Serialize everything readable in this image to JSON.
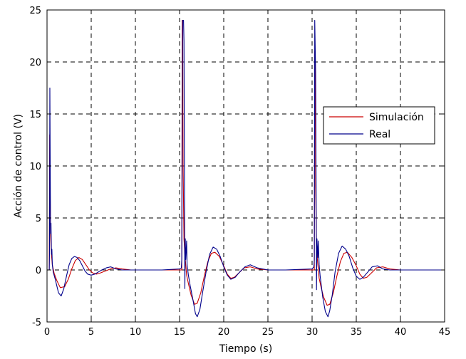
{
  "chart_data": {
    "type": "line",
    "xlabel": "Tiempo (s)",
    "ylabel": "Acción de control (V)",
    "xlim": [
      0,
      45
    ],
    "ylim": [
      -5,
      25
    ],
    "xticks": [
      "0",
      "5",
      "10",
      "15",
      "20",
      "25",
      "30",
      "35",
      "40",
      "45"
    ],
    "yticks": [
      "-5",
      "0",
      "5",
      "10",
      "15",
      "20",
      "25"
    ],
    "grid": true,
    "legend_position": "center-right",
    "series": [
      {
        "name": "Simulación",
        "color": "#cc0000",
        "x": [
          0,
          0.25,
          0.3,
          0.35,
          0.4,
          0.5,
          0.6,
          0.8,
          1.1,
          1.5,
          2.0,
          2.4,
          2.8,
          3.2,
          3.6,
          4.0,
          4.4,
          4.8,
          5.2,
          5.6,
          6.0,
          6.6,
          7.2,
          7.8,
          8.5,
          9.5,
          11,
          13,
          15.0,
          15.25,
          15.3,
          15.35,
          15.4,
          15.5,
          15.6,
          15.8,
          16.0,
          16.3,
          16.7,
          17.0,
          17.4,
          17.8,
          18.2,
          18.6,
          19.0,
          19.5,
          20.0,
          20.4,
          20.8,
          21.2,
          21.7,
          22.3,
          23.0,
          23.8,
          25,
          27,
          30.0,
          30.25,
          30.3,
          30.35,
          30.4,
          30.5,
          30.6,
          30.8,
          31.0,
          31.3,
          31.7,
          32.0,
          32.4,
          32.8,
          33.2,
          33.6,
          34.0,
          34.5,
          35.0,
          35.4,
          35.8,
          36.2,
          36.7,
          37.3,
          38.0,
          38.8,
          40,
          42,
          45
        ],
        "y": [
          0,
          0,
          13,
          8,
          3.5,
          1.5,
          0.5,
          -0.3,
          -1.0,
          -1.7,
          -1.6,
          -0.9,
          0.1,
          0.9,
          1.2,
          1.0,
          0.5,
          0.0,
          -0.3,
          -0.4,
          -0.3,
          -0.1,
          0.1,
          0.2,
          0.1,
          0.0,
          0.0,
          0.0,
          0.0,
          0.0,
          24,
          24,
          10,
          3.0,
          1.5,
          -0.5,
          -1.3,
          -2.4,
          -3.3,
          -3.2,
          -2.2,
          -0.6,
          0.8,
          1.6,
          1.7,
          1.3,
          0.4,
          -0.4,
          -0.8,
          -0.7,
          -0.3,
          0.2,
          0.3,
          0.1,
          0.0,
          0.0,
          0.0,
          0.0,
          21,
          20,
          8,
          2.5,
          1.0,
          -0.8,
          -1.6,
          -2.6,
          -3.4,
          -3.3,
          -2.2,
          -0.6,
          0.8,
          1.6,
          1.7,
          1.2,
          0.4,
          -0.4,
          -0.8,
          -0.7,
          -0.3,
          0.2,
          0.3,
          0.1,
          0.0,
          0.0,
          0.0
        ]
      },
      {
        "name": "Real",
        "color": "#00008b",
        "x": [
          0,
          0.25,
          0.28,
          0.32,
          0.36,
          0.4,
          0.45,
          0.5,
          0.55,
          0.6,
          0.7,
          0.9,
          1.1,
          1.3,
          1.6,
          1.9,
          2.2,
          2.5,
          2.8,
          3.1,
          3.4,
          3.7,
          4.0,
          4.3,
          4.6,
          5.0,
          5.4,
          5.8,
          6.2,
          6.7,
          7.2,
          7.8,
          8.5,
          9.5,
          11,
          13,
          15.0,
          15.2,
          15.25,
          15.35,
          15.45,
          15.5,
          15.6,
          15.65,
          15.7,
          15.8,
          15.85,
          16.0,
          16.2,
          16.5,
          16.8,
          17.0,
          17.3,
          17.6,
          18.0,
          18.4,
          18.8,
          19.2,
          19.6,
          20.0,
          20.4,
          20.8,
          21.3,
          21.8,
          22.4,
          23.0,
          23.8,
          25,
          27,
          30.0,
          30.2,
          30.25,
          30.3,
          30.4,
          30.5,
          30.55,
          30.65,
          30.7,
          30.8,
          30.9,
          31.0,
          31.2,
          31.5,
          31.8,
          32.0,
          32.3,
          32.6,
          33.0,
          33.4,
          33.8,
          34.2,
          34.6,
          35.0,
          35.4,
          35.8,
          36.3,
          36.8,
          37.4,
          38.0,
          38.8,
          40,
          42,
          45
        ],
        "y": [
          0,
          0,
          1.5,
          17.5,
          10,
          3.5,
          4.5,
          1.5,
          2.0,
          0.5,
          -0.2,
          -0.8,
          -1.5,
          -2.2,
          -2.5,
          -1.8,
          -0.6,
          0.5,
          1.1,
          1.3,
          1.2,
          0.9,
          0.4,
          -0.1,
          -0.4,
          -0.5,
          -0.4,
          -0.2,
          0.0,
          0.2,
          0.3,
          0.1,
          0.0,
          0.0,
          0.0,
          0.0,
          0.1,
          0.2,
          1.0,
          24,
          24,
          22,
          -1.8,
          3.0,
          1.0,
          2.8,
          0.5,
          -0.5,
          -1.5,
          -2.8,
          -4.2,
          -4.5,
          -3.8,
          -2.2,
          -0.2,
          1.5,
          2.2,
          2.0,
          1.3,
          0.3,
          -0.5,
          -0.9,
          -0.7,
          -0.2,
          0.3,
          0.5,
          0.2,
          0.0,
          0.0,
          0.1,
          0.3,
          1.0,
          24,
          19,
          -1.9,
          3.0,
          1.2,
          2.8,
          0.5,
          -0.5,
          -1.2,
          -2.6,
          -4.0,
          -4.5,
          -3.9,
          -2.3,
          -0.2,
          1.6,
          2.3,
          2.0,
          1.3,
          0.2,
          -0.6,
          -0.9,
          -0.7,
          -0.2,
          0.3,
          0.4,
          0.1,
          0.0,
          0.0,
          0.0,
          0.0
        ]
      }
    ]
  }
}
